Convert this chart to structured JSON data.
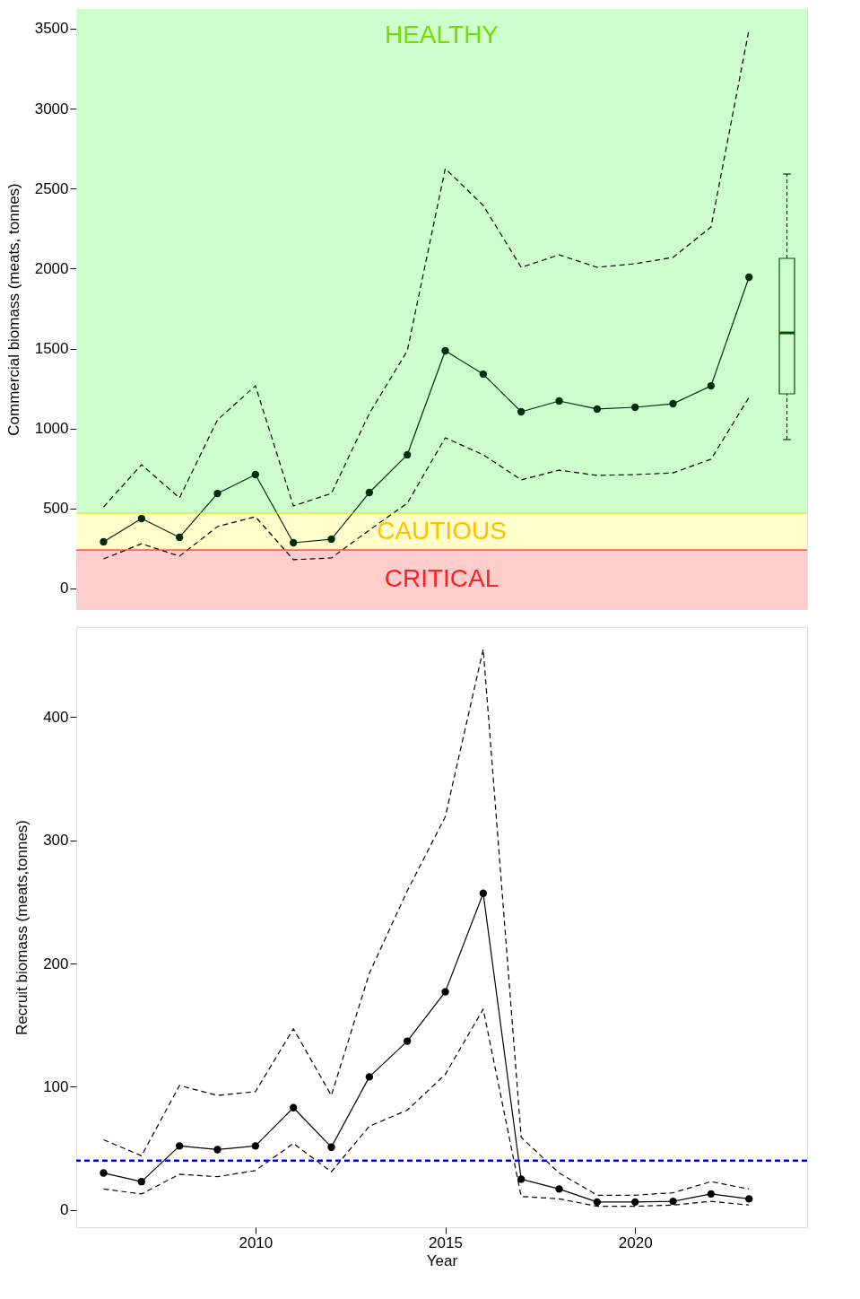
{
  "chart_data": [
    {
      "type": "line",
      "ylabel": "Commercial biomass (meats, tonnes)",
      "x": [
        2006,
        2007,
        2008,
        2009,
        2010,
        2011,
        2012,
        2013,
        2014,
        2015,
        2016,
        2017,
        2018,
        2019,
        2020,
        2021,
        2022,
        2023
      ],
      "series": [
        {
          "color": "#000000",
          "line_style": "dashed",
          "marker": "none",
          "values": [
            510,
            774,
            566,
            1054,
            1267,
            516,
            594,
            1094,
            1486,
            2625,
            2395,
            2008,
            2086,
            2008,
            2030,
            2070,
            2260,
            3494
          ]
        },
        {
          "color": "#002b0a",
          "line_style": "solid",
          "marker": "circle",
          "values": [
            292,
            437,
            320,
            594,
            712,
            286,
            308,
            600,
            836,
            1486,
            1340,
            1105,
            1172,
            1122,
            1133,
            1155,
            1267,
            1946
          ]
        },
        {
          "color": "#000000",
          "line_style": "dashed",
          "marker": "none",
          "values": [
            185,
            280,
            202,
            387,
            449,
            180,
            191,
            365,
            533,
            942,
            836,
            679,
            740,
            707,
            712,
            723,
            808,
            1195
          ]
        },
        {
          "type": "box",
          "color": "#005000",
          "x": [
            2024
          ],
          "boxes": [
            {
              "low": 931,
              "q1": 1217,
              "median": 1598,
              "q3": 2064,
              "high": 2591
            }
          ]
        }
      ],
      "bands": [
        {
          "axis": "y",
          "from": 471,
          "to": 3623,
          "label": "HEALTHY",
          "color": "#ccffcc"
        },
        {
          "axis": "y",
          "from": 241,
          "to": 471,
          "label": "CAUTIOUS",
          "color": "#ffffcc"
        },
        {
          "axis": "y",
          "from": -129,
          "to": 241,
          "label": "CRITICAL",
          "color": "#ffcccc"
        }
      ],
      "ref_lines": [
        {
          "axis": "y",
          "value": 471,
          "color": "#e0e000",
          "line_style": "solid"
        },
        {
          "axis": "y",
          "value": 241,
          "color": "#ff0000",
          "line_style": "solid"
        }
      ],
      "xlim": [
        2005.28,
        2024.53
      ],
      "ylim": [
        -129,
        3623
      ],
      "yticks": [
        0,
        500,
        1000,
        1500,
        2000,
        2500,
        3000,
        3500
      ],
      "tick_labels": "y",
      "grid": false
    },
    {
      "type": "line",
      "xlabel": "Year",
      "ylabel": "Recruit biomass (meats,tonnes)",
      "x": [
        2006,
        2007,
        2008,
        2009,
        2010,
        2011,
        2012,
        2013,
        2014,
        2015,
        2016,
        2017,
        2018,
        2019,
        2020,
        2021,
        2022,
        2023
      ],
      "series": [
        {
          "color": "#000000",
          "line_style": "dashed",
          "marker": "none",
          "values": [
            57,
            44,
            101,
            93,
            96,
            147,
            93,
            192,
            259,
            319,
            455,
            59,
            30,
            12,
            12,
            14,
            23,
            17
          ]
        },
        {
          "color": "#000000",
          "line_style": "solid",
          "marker": "circle",
          "values": [
            30,
            23,
            52,
            49,
            52,
            83,
            51,
            108,
            137,
            177,
            257,
            25,
            17,
            6.5,
            6.5,
            7,
            13,
            9
          ]
        },
        {
          "color": "#000000",
          "line_style": "dashed",
          "marker": "none",
          "values": [
            17,
            13,
            29,
            27,
            32,
            54,
            31,
            68,
            81,
            110,
            163,
            11,
            9,
            3,
            3,
            4,
            7,
            4
          ]
        }
      ],
      "ref_lines": [
        {
          "axis": "y",
          "value": 40,
          "color": "#0000ff",
          "line_style": "dashed"
        }
      ],
      "xlim": [
        2005.28,
        2024.53
      ],
      "ylim": [
        -14,
        473
      ],
      "xticks": [
        2010,
        2015,
        2020
      ],
      "yticks": [
        0,
        100,
        200,
        300,
        400
      ],
      "grid": false
    }
  ]
}
